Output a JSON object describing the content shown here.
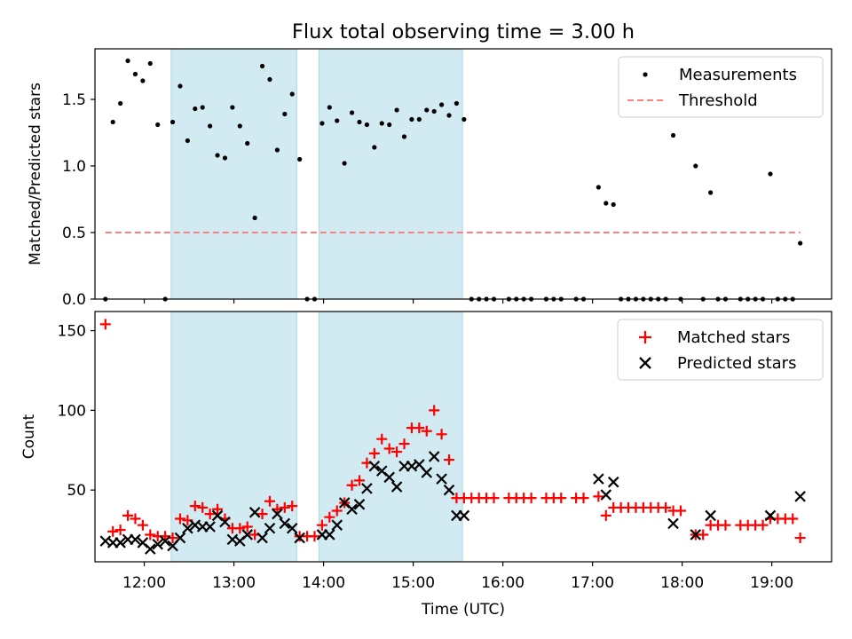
{
  "title": "Flux total observing time = 3.00 h",
  "colors": {
    "matched": "#ff0000",
    "predicted": "#000000",
    "threshold": "#ff7f7f",
    "shade": "#add8e6",
    "measurement": "#000000"
  },
  "chart_data": [
    {
      "type": "scatter",
      "panel": "top",
      "ylabel": "Matched/Predicted stars",
      "xlabel": "",
      "xlim": [
        "11:27",
        "19:40"
      ],
      "ylim": [
        0,
        1.88
      ],
      "yticks": [
        0.0,
        0.5,
        1.0,
        1.5
      ],
      "grid": false,
      "legend_position": "top-right",
      "shaded_intervals": [
        [
          "12:18",
          "13:42"
        ],
        [
          "13:57",
          "15:33"
        ]
      ],
      "series": [
        {
          "name": "Measurements",
          "marker": "dot",
          "points": [
            [
              "11:34",
              0.0
            ],
            [
              "11:39",
              1.33
            ],
            [
              "11:44",
              1.47
            ],
            [
              "11:49",
              1.79
            ],
            [
              "11:54",
              1.69
            ],
            [
              "11:59",
              1.64
            ],
            [
              "12:04",
              1.77
            ],
            [
              "12:09",
              1.31
            ],
            [
              "12:14",
              0.0
            ],
            [
              "12:19",
              1.33
            ],
            [
              "12:24",
              1.6
            ],
            [
              "12:29",
              1.19
            ],
            [
              "12:34",
              1.43
            ],
            [
              "12:39",
              1.44
            ],
            [
              "12:44",
              1.3
            ],
            [
              "12:49",
              1.08
            ],
            [
              "12:54",
              1.06
            ],
            [
              "12:59",
              1.44
            ],
            [
              "13:04",
              1.3
            ],
            [
              "13:09",
              1.17
            ],
            [
              "13:14",
              0.61
            ],
            [
              "13:19",
              1.75
            ],
            [
              "13:24",
              1.65
            ],
            [
              "13:29",
              1.12
            ],
            [
              "13:34",
              1.39
            ],
            [
              "13:39",
              1.54
            ],
            [
              "13:44",
              1.05
            ],
            [
              "13:49",
              0.0
            ],
            [
              "13:54",
              0.0
            ],
            [
              "13:59",
              1.32
            ],
            [
              "14:04",
              1.44
            ],
            [
              "14:09",
              1.34
            ],
            [
              "14:14",
              1.02
            ],
            [
              "14:19",
              1.4
            ],
            [
              "14:24",
              1.33
            ],
            [
              "14:29",
              1.31
            ],
            [
              "14:34",
              1.14
            ],
            [
              "14:39",
              1.32
            ],
            [
              "14:44",
              1.31
            ],
            [
              "14:49",
              1.42
            ],
            [
              "14:54",
              1.22
            ],
            [
              "14:59",
              1.35
            ],
            [
              "15:04",
              1.35
            ],
            [
              "15:09",
              1.42
            ],
            [
              "15:14",
              1.41
            ],
            [
              "15:19",
              1.46
            ],
            [
              "15:24",
              1.38
            ],
            [
              "15:29",
              1.47
            ],
            [
              "15:34",
              1.35
            ],
            [
              "15:39",
              0.0
            ],
            [
              "15:44",
              0.0
            ],
            [
              "15:49",
              0.0
            ],
            [
              "15:54",
              0.0
            ],
            [
              "16:04",
              0.0
            ],
            [
              "16:09",
              0.0
            ],
            [
              "16:14",
              0.0
            ],
            [
              "16:19",
              0.0
            ],
            [
              "16:29",
              0.0
            ],
            [
              "16:34",
              0.0
            ],
            [
              "16:39",
              0.0
            ],
            [
              "16:49",
              0.0
            ],
            [
              "16:54",
              0.0
            ],
            [
              "17:04",
              0.84
            ],
            [
              "17:09",
              0.72
            ],
            [
              "17:14",
              0.71
            ],
            [
              "17:19",
              0.0
            ],
            [
              "17:24",
              0.0
            ],
            [
              "17:29",
              0.0
            ],
            [
              "17:34",
              0.0
            ],
            [
              "17:39",
              0.0
            ],
            [
              "17:44",
              0.0
            ],
            [
              "17:49",
              0.0
            ],
            [
              "17:54",
              1.23
            ],
            [
              "17:59",
              0.0
            ],
            [
              "18:09",
              1.0
            ],
            [
              "18:14",
              0.0
            ],
            [
              "18:19",
              0.8
            ],
            [
              "18:24",
              0.0
            ],
            [
              "18:29",
              0.0
            ],
            [
              "18:39",
              0.0
            ],
            [
              "18:44",
              0.0
            ],
            [
              "18:49",
              0.0
            ],
            [
              "18:54",
              0.0
            ],
            [
              "18:59",
              0.94
            ],
            [
              "19:04",
              0.0
            ],
            [
              "19:09",
              0.0
            ],
            [
              "19:14",
              0.0
            ],
            [
              "19:19",
              0.42
            ]
          ]
        },
        {
          "name": "Threshold",
          "style": "dashed",
          "x": [
            "11:34",
            "19:19"
          ],
          "y": [
            0.5,
            0.5
          ]
        }
      ]
    },
    {
      "type": "scatter",
      "panel": "bottom",
      "ylabel": "Count",
      "xlabel": "Time (UTC)",
      "xlim": [
        "11:27",
        "19:40"
      ],
      "ylim": [
        5,
        162
      ],
      "yticks": [
        50,
        100,
        150
      ],
      "xticks": [
        "12:00",
        "13:00",
        "14:00",
        "15:00",
        "16:00",
        "17:00",
        "18:00",
        "19:00"
      ],
      "grid": false,
      "legend_position": "top-right",
      "shaded_intervals": [
        [
          "12:18",
          "13:42"
        ],
        [
          "13:57",
          "15:33"
        ]
      ],
      "series": [
        {
          "name": "Matched stars",
          "marker": "plus",
          "points": [
            [
              "11:34",
              154
            ],
            [
              "11:39",
              24
            ],
            [
              "11:44",
              25
            ],
            [
              "11:49",
              34
            ],
            [
              "11:54",
              32
            ],
            [
              "11:59",
              28
            ],
            [
              "12:04",
              22
            ],
            [
              "12:09",
              21
            ],
            [
              "12:14",
              21
            ],
            [
              "12:19",
              20
            ],
            [
              "12:24",
              32
            ],
            [
              "12:29",
              31
            ],
            [
              "12:34",
              40
            ],
            [
              "12:39",
              39
            ],
            [
              "12:44",
              35
            ],
            [
              "12:49",
              38
            ],
            [
              "12:54",
              32
            ],
            [
              "12:59",
              26
            ],
            [
              "13:04",
              26
            ],
            [
              "13:09",
              27
            ],
            [
              "13:14",
              22
            ],
            [
              "13:19",
              35
            ],
            [
              "13:24",
              43
            ],
            [
              "13:29",
              38
            ],
            [
              "13:34",
              39
            ],
            [
              "13:39",
              40
            ],
            [
              "13:44",
              21
            ],
            [
              "13:49",
              21
            ],
            [
              "13:54",
              21
            ],
            [
              "13:59",
              28
            ],
            [
              "14:04",
              33
            ],
            [
              "14:09",
              37
            ],
            [
              "14:14",
              42
            ],
            [
              "14:19",
              53
            ],
            [
              "14:24",
              56
            ],
            [
              "14:29",
              67
            ],
            [
              "14:34",
              73
            ],
            [
              "14:39",
              82
            ],
            [
              "14:44",
              76
            ],
            [
              "14:49",
              74
            ],
            [
              "14:54",
              79
            ],
            [
              "14:59",
              89
            ],
            [
              "15:04",
              89
            ],
            [
              "15:09",
              87
            ],
            [
              "15:14",
              100
            ],
            [
              "15:19",
              85
            ],
            [
              "15:24",
              69
            ],
            [
              "15:29",
              45
            ],
            [
              "15:34",
              45
            ],
            [
              "15:39",
              45
            ],
            [
              "15:44",
              45
            ],
            [
              "15:49",
              45
            ],
            [
              "15:54",
              45
            ],
            [
              "16:04",
              45
            ],
            [
              "16:09",
              45
            ],
            [
              "16:14",
              45
            ],
            [
              "16:19",
              45
            ],
            [
              "16:29",
              45
            ],
            [
              "16:34",
              45
            ],
            [
              "16:39",
              45
            ],
            [
              "16:49",
              45
            ],
            [
              "16:54",
              45
            ],
            [
              "17:04",
              46
            ],
            [
              "17:09",
              34
            ],
            [
              "17:14",
              39
            ],
            [
              "17:19",
              39
            ],
            [
              "17:24",
              39
            ],
            [
              "17:29",
              39
            ],
            [
              "17:34",
              39
            ],
            [
              "17:39",
              39
            ],
            [
              "17:44",
              39
            ],
            [
              "17:49",
              39
            ],
            [
              "17:54",
              37
            ],
            [
              "17:59",
              37
            ],
            [
              "18:09",
              22
            ],
            [
              "18:14",
              22
            ],
            [
              "18:19",
              28
            ],
            [
              "18:24",
              28
            ],
            [
              "18:29",
              28
            ],
            [
              "18:39",
              28
            ],
            [
              "18:44",
              28
            ],
            [
              "18:49",
              28
            ],
            [
              "18:54",
              28
            ],
            [
              "18:59",
              32
            ],
            [
              "19:04",
              32
            ],
            [
              "19:09",
              32
            ],
            [
              "19:14",
              32
            ],
            [
              "19:19",
              20
            ]
          ]
        },
        {
          "name": "Predicted stars",
          "marker": "x",
          "points": [
            [
              "11:34",
              18
            ],
            [
              "11:39",
              17
            ],
            [
              "11:44",
              17
            ],
            [
              "11:49",
              19
            ],
            [
              "11:54",
              19
            ],
            [
              "11:59",
              17
            ],
            [
              "12:04",
              13
            ],
            [
              "12:09",
              16
            ],
            [
              "12:14",
              18
            ],
            [
              "12:19",
              15
            ],
            [
              "12:24",
              20
            ],
            [
              "12:29",
              26
            ],
            [
              "12:34",
              28
            ],
            [
              "12:39",
              27
            ],
            [
              "12:44",
              27
            ],
            [
              "12:49",
              34
            ],
            [
              "12:54",
              30
            ],
            [
              "12:59",
              19
            ],
            [
              "13:04",
              18
            ],
            [
              "13:09",
              22
            ],
            [
              "13:14",
              36
            ],
            [
              "13:19",
              20
            ],
            [
              "13:24",
              26
            ],
            [
              "13:29",
              35
            ],
            [
              "13:34",
              29
            ],
            [
              "13:39",
              26
            ],
            [
              "13:44",
              20
            ],
            [
              "13:59",
              22
            ],
            [
              "14:04",
              22
            ],
            [
              "14:09",
              28
            ],
            [
              "14:14",
              42
            ],
            [
              "14:19",
              38
            ],
            [
              "14:24",
              41
            ],
            [
              "14:29",
              51
            ],
            [
              "14:34",
              65
            ],
            [
              "14:39",
              62
            ],
            [
              "14:44",
              58
            ],
            [
              "14:49",
              52
            ],
            [
              "14:54",
              65
            ],
            [
              "14:59",
              65
            ],
            [
              "15:04",
              66
            ],
            [
              "15:09",
              61
            ],
            [
              "15:14",
              71
            ],
            [
              "15:19",
              57
            ],
            [
              "15:24",
              50
            ],
            [
              "15:29",
              34
            ],
            [
              "15:34",
              34
            ],
            [
              "17:04",
              57
            ],
            [
              "17:09",
              47
            ],
            [
              "17:14",
              55
            ],
            [
              "17:54",
              29
            ],
            [
              "18:09",
              22
            ],
            [
              "18:19",
              34
            ],
            [
              "18:59",
              34
            ],
            [
              "19:19",
              46
            ]
          ]
        }
      ]
    }
  ]
}
